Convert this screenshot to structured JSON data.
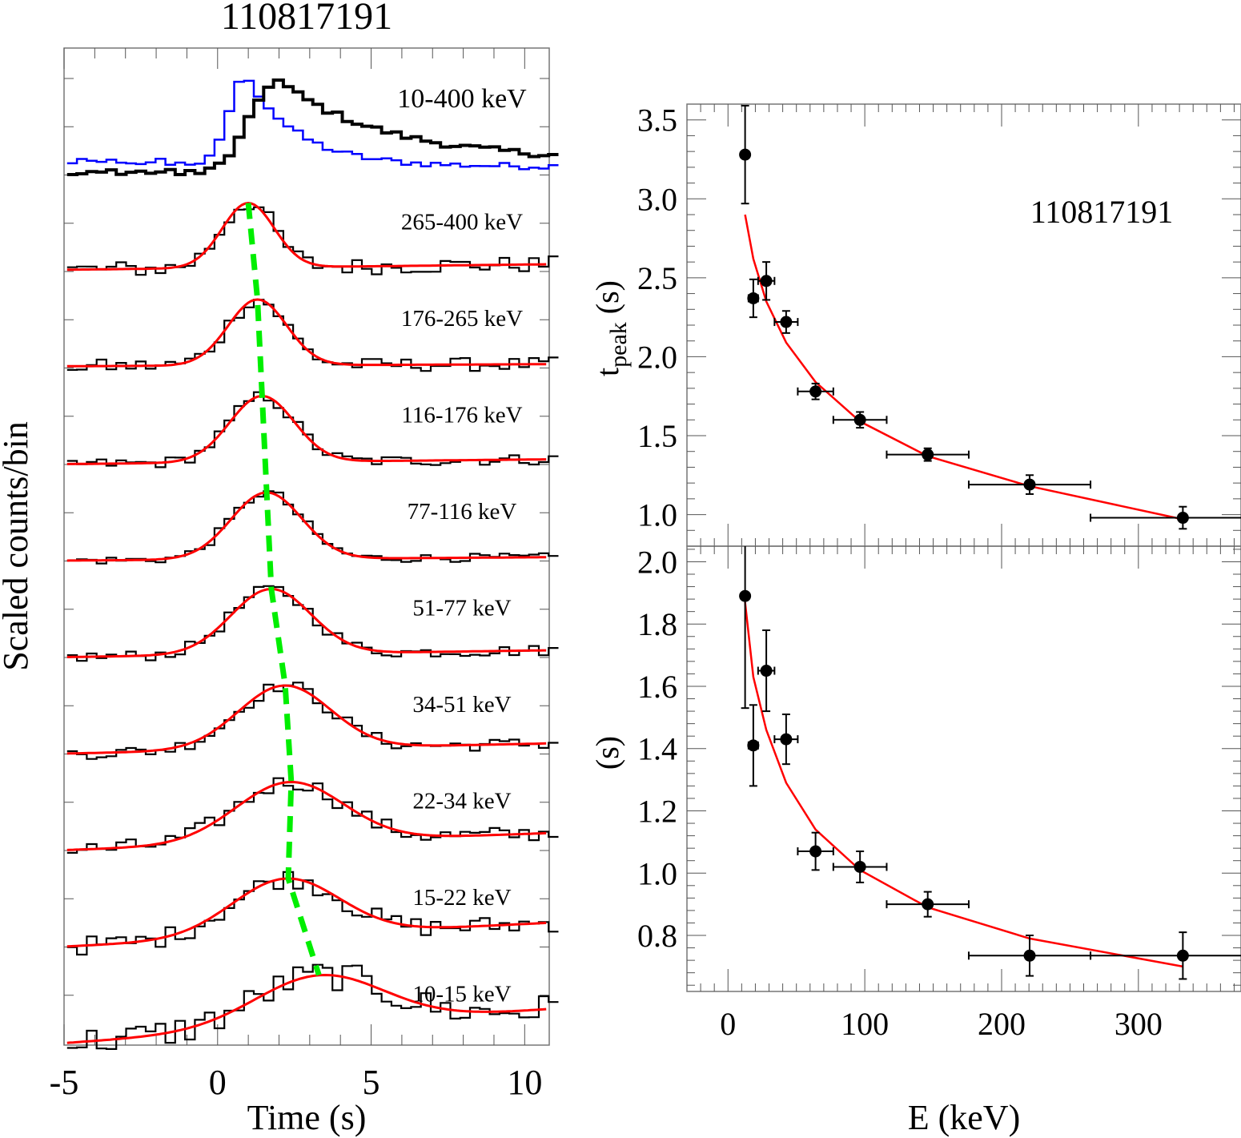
{
  "figure_title": "110817191",
  "chart_data": [
    {
      "id": "light_curves",
      "type": "line",
      "title": "110817191",
      "xlabel": "Time (s)",
      "ylabel": "Scaled counts/bin",
      "xlim": [
        -5,
        10.8
      ],
      "xticks": [
        -5,
        0,
        5,
        10
      ],
      "xtick_labels": [
        "-5",
        "0",
        "5",
        "10"
      ],
      "grid": false,
      "panels": [
        {
          "label": "10-400 keV",
          "kind": "total",
          "series_colors": {
            "main": "#000000",
            "alt": "#0000ff"
          },
          "main": {
            "peak_time": 1.8,
            "width_rise": 0.9,
            "width_decay": 3.2,
            "baseline": 0.0,
            "tail": 0.22
          },
          "alt": {
            "peak_time": 0.8,
            "width_rise": 0.6,
            "width_decay": 1.6,
            "baseline": 0.05,
            "tail": 0.05
          }
        },
        {
          "label": "265-400 keV",
          "peak_time": 1.0,
          "sigma": 0.85,
          "baseline_start": 0.02,
          "baseline_end": 0.1,
          "noise": 0.12
        },
        {
          "label": "176-265 keV",
          "peak_time": 1.3,
          "sigma": 0.95,
          "baseline_start": 0.02,
          "baseline_end": 0.05,
          "noise": 0.1
        },
        {
          "label": "116-176 keV",
          "peak_time": 1.45,
          "sigma": 1.05,
          "baseline_start": 0.0,
          "baseline_end": 0.07,
          "noise": 0.08
        },
        {
          "label": "77-116 keV",
          "peak_time": 1.6,
          "sigma": 1.15,
          "baseline_start": 0.0,
          "baseline_end": 0.05,
          "noise": 0.06
        },
        {
          "label": "51-77 keV",
          "peak_time": 1.75,
          "sigma": 1.3,
          "baseline_start": 0.0,
          "baseline_end": 0.1,
          "noise": 0.08
        },
        {
          "label": "34-51 keV",
          "peak_time": 2.2,
          "sigma": 1.5,
          "baseline_start": 0.0,
          "baseline_end": 0.15,
          "noise": 0.09
        },
        {
          "label": "22-34 keV",
          "peak_time": 2.4,
          "sigma": 1.75,
          "baseline_start": 0.0,
          "baseline_end": 0.25,
          "noise": 0.12
        },
        {
          "label": "15-22 keV",
          "peak_time": 2.3,
          "sigma": 1.75,
          "baseline_start": 0.0,
          "baseline_end": 0.35,
          "noise": 0.14
        },
        {
          "label": "10-15 keV",
          "peak_time": 3.5,
          "sigma": 2.1,
          "baseline_start": 0.0,
          "baseline_end": 0.5,
          "noise": 0.22
        }
      ],
      "peak_track": {
        "color": "#00ee00",
        "style": "dashed",
        "times": [
          1.0,
          1.3,
          1.45,
          1.6,
          1.75,
          2.2,
          2.4,
          2.3,
          3.3
        ]
      },
      "colors": {
        "data": "#000000",
        "fit": "#ff0000",
        "blue": "#0000ff"
      }
    },
    {
      "id": "tpeak_vs_energy",
      "type": "scatter",
      "title": "110817191",
      "xlabel": "E (keV)",
      "ylabel": "t_peak (s)",
      "ylabel_main": "t",
      "ylabel_sub": "peak",
      "ylabel_unit": " (s)",
      "xlim": [
        -30,
        375
      ],
      "ylim": [
        0.8,
        3.6
      ],
      "yticks": [
        1.0,
        1.5,
        2.0,
        2.5,
        3.0,
        3.5
      ],
      "ytick_labels": [
        "1.0",
        "1.5",
        "2.0",
        "2.5",
        "3.0",
        "3.5"
      ],
      "points": [
        {
          "x": 12.5,
          "xerr": 2.5,
          "y": 3.28,
          "yerr": 0.31
        },
        {
          "x": 18.5,
          "xerr": 3.5,
          "y": 2.37,
          "yerr": 0.12
        },
        {
          "x": 28,
          "xerr": 6,
          "y": 2.48,
          "yerr": 0.12
        },
        {
          "x": 42.5,
          "xerr": 8.5,
          "y": 2.22,
          "yerr": 0.07
        },
        {
          "x": 64,
          "xerr": 13,
          "y": 1.78,
          "yerr": 0.05
        },
        {
          "x": 96.5,
          "xerr": 19.5,
          "y": 1.6,
          "yerr": 0.05
        },
        {
          "x": 146,
          "xerr": 30,
          "y": 1.38,
          "yerr": 0.04
        },
        {
          "x": 220.5,
          "xerr": 44.5,
          "y": 1.19,
          "yerr": 0.06
        },
        {
          "x": 332.5,
          "xerr": 67.5,
          "y": 0.98,
          "yerr": 0.07
        }
      ],
      "fit": {
        "x": [
          12.5,
          18.5,
          28,
          42.5,
          64,
          96.5,
          146,
          220.5,
          332.5
        ],
        "y": [
          2.9,
          2.62,
          2.35,
          2.09,
          1.84,
          1.59,
          1.37,
          1.18,
          0.97
        ]
      },
      "annotation": "110817191"
    },
    {
      "id": "width_vs_energy",
      "type": "scatter",
      "xlabel": "E (keV)",
      "ylabel": "(s)",
      "xlim": [
        -30,
        375
      ],
      "ylim": [
        0.62,
        2.05
      ],
      "xticks": [
        0,
        100,
        200,
        300
      ],
      "xtick_labels": [
        "0",
        "100",
        "200",
        "300"
      ],
      "yticks": [
        0.8,
        1.0,
        1.2,
        1.4,
        1.6,
        1.8,
        2.0
      ],
      "ytick_labels": [
        "0.8",
        "1.0",
        "1.2",
        "1.4",
        "1.6",
        "1.8",
        "2.0"
      ],
      "points": [
        {
          "x": 12.5,
          "xerr": 2.5,
          "y": 1.89,
          "yerr_lo": 0.36,
          "yerr_hi": 0.2
        },
        {
          "x": 18.5,
          "xerr": 3.5,
          "y": 1.41,
          "yerr": 0.13
        },
        {
          "x": 28,
          "xerr": 6,
          "y": 1.65,
          "yerr": 0.13
        },
        {
          "x": 42.5,
          "xerr": 8.5,
          "y": 1.43,
          "yerr": 0.08
        },
        {
          "x": 64,
          "xerr": 13,
          "y": 1.07,
          "yerr": 0.06
        },
        {
          "x": 96.5,
          "xerr": 19.5,
          "y": 1.02,
          "yerr": 0.05
        },
        {
          "x": 146,
          "xerr": 30,
          "y": 0.9,
          "yerr": 0.04
        },
        {
          "x": 220.5,
          "xerr": 44.5,
          "y": 0.735,
          "yerr": 0.065
        },
        {
          "x": 332.5,
          "xerr": 67.5,
          "y": 0.735,
          "yerr": 0.075
        }
      ],
      "fit": {
        "x": [
          12.5,
          18.5,
          28,
          42.5,
          64,
          96.5,
          146,
          220.5,
          332.5
        ],
        "y": [
          1.87,
          1.63,
          1.46,
          1.29,
          1.14,
          1.01,
          0.89,
          0.79,
          0.7
        ]
      }
    }
  ]
}
